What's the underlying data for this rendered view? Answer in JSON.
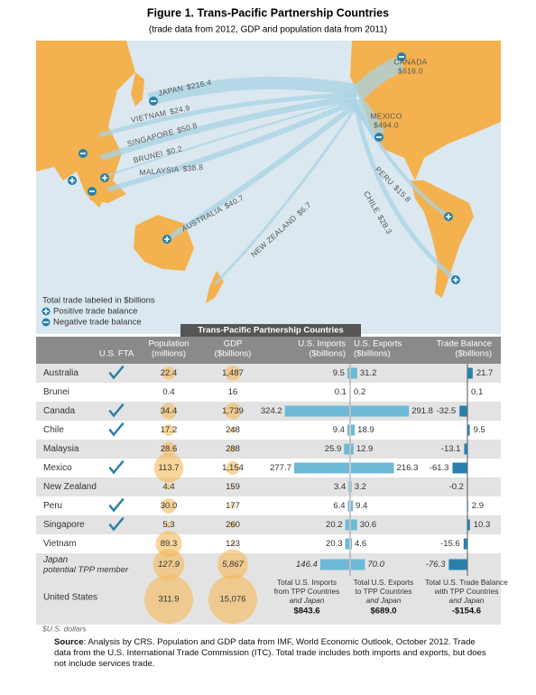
{
  "header": {
    "title": "Figure 1. Trans-Pacific Partnership Countries",
    "subtitle": "(trade data from 2012, GDP and population data from 2011)"
  },
  "map": {
    "labels": [
      {
        "name": "JAPAN",
        "value": "$216.4"
      },
      {
        "name": "VIETNAM",
        "value": "$24.9"
      },
      {
        "name": "SINGAPORE",
        "value": "$50.8"
      },
      {
        "name": "BRUNEI",
        "value": "$0.2"
      },
      {
        "name": "MALAYSIA",
        "value": "$38.8"
      },
      {
        "name": "AUSTRALIA",
        "value": "$40.7"
      },
      {
        "name": "NEW ZEALAND",
        "value": "$6.7"
      },
      {
        "name": "CANADA",
        "value": "$616.0"
      },
      {
        "name": "MEXICO",
        "value": "$494.0"
      },
      {
        "name": "PERU",
        "value": "$15.8"
      },
      {
        "name": "CHILE",
        "value": "$28.3"
      }
    ],
    "legend": {
      "title": "Total trade labeled in $billions",
      "positive": "Positive trade balance",
      "negative": "Negative trade balance"
    }
  },
  "table": {
    "title": "Trans-Pacific Partnership Countries",
    "columns": [
      {
        "name": "U.S. FTA"
      },
      {
        "name": "Population",
        "unit": "(millions)"
      },
      {
        "name": "GDP",
        "unit": "($billions)"
      },
      {
        "name": "U.S. Imports",
        "unit": "($billions)"
      },
      {
        "name": "U.S. Exports",
        "unit": "($billions)"
      },
      {
        "name": "Trade Balance",
        "unit": "($billions)"
      }
    ],
    "rows": [
      {
        "country": "Australia",
        "fta": true,
        "population": 22.4,
        "gdp": {
          "value": 1487,
          "label": "1,487"
        },
        "imports": 9.5,
        "exports": 31.2,
        "balance": 21.7
      },
      {
        "country": "Brunei",
        "fta": false,
        "population": 0.4,
        "gdp": 16,
        "imports": 0.1,
        "exports": 0.2,
        "balance": 0.1
      },
      {
        "country": "Canada",
        "fta": true,
        "population": 34.4,
        "gdp": {
          "value": 1739,
          "label": "1,739"
        },
        "imports": 324.2,
        "exports": 291.8,
        "balance": -32.5
      },
      {
        "country": "Chile",
        "fta": true,
        "population": 17.2,
        "gdp": 248,
        "imports": 9.4,
        "exports": 18.9,
        "balance": 9.5
      },
      {
        "country": "Malaysia",
        "fta": false,
        "population": 28.6,
        "gdp": 288,
        "imports": 25.9,
        "exports": 12.9,
        "balance": -13.1
      },
      {
        "country": "Mexico",
        "fta": true,
        "population": 113.7,
        "gdp": {
          "value": 1154,
          "label": "1,154"
        },
        "imports": 277.7,
        "exports": 216.3,
        "balance": -61.3
      },
      {
        "country": "New Zealand",
        "fta": false,
        "population": 4.4,
        "gdp": 159,
        "imports": 3.4,
        "exports": 3.2,
        "balance": -0.2
      },
      {
        "country": "Peru",
        "fta": true,
        "population": {
          "value": 30,
          "label": "30.0"
        },
        "gdp": 177,
        "imports": 6.4,
        "exports": 9.4,
        "balance": 2.9
      },
      {
        "country": "Singapore",
        "fta": true,
        "population": 5.3,
        "gdp": 260,
        "imports": 20.2,
        "exports": 30.6,
        "balance": 10.3
      },
      {
        "country": "Vietnam",
        "fta": false,
        "population": 89.3,
        "gdp": 123,
        "imports": 20.3,
        "exports": 4.6,
        "balance": -15.6
      },
      {
        "country": "Japan",
        "note": "potential TPP member",
        "fta": false,
        "population": 127.9,
        "gdp": {
          "value": 5867,
          "label": "5,867"
        },
        "imports": 146.4,
        "exports": {
          "value": 70,
          "label": "70.0"
        },
        "balance": -76.3
      }
    ],
    "us": {
      "country": "United States",
      "population": 311.9,
      "gdp": {
        "value": 15076,
        "label": "15,076"
      },
      "totals": [
        {
          "lines": [
            "Total U.S. Imports",
            "from TPP Countries"
          ],
          "note": "and Japan",
          "value": "$843.6"
        },
        {
          "lines": [
            "Total U.S. Exports",
            "to TPP Countries"
          ],
          "note": "and Japan",
          "value": "$689.0"
        },
        {
          "lines": [
            "Total U.S. Trade Balance",
            "with TPP Countries"
          ],
          "note": "and Japan",
          "value": "-$154.6"
        }
      ]
    },
    "unit_note": "$U.S. dollars"
  },
  "source": {
    "label": "Source",
    "text": ": Analysis by CRS. Population and GDP data from IMF, World Economic Outlook, October 2012. Trade data from the U.S. International Trade Commission (ITC). Total trade includes both imports and exports, but does not include services trade."
  }
}
